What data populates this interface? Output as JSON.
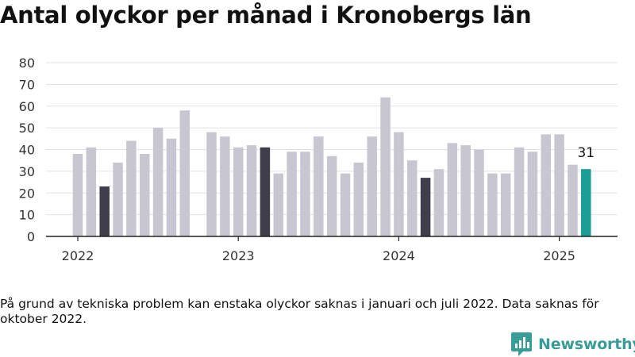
{
  "header": {
    "title": "Antal olyckor per månad i Kronobergs län"
  },
  "footer": {
    "note": "På grund av tekniska problem kan enstaka olyckor saknas i januari och juli 2022. Data saknas för oktober 2022.",
    "brand": "Newsworthy",
    "brand_icon": "bar-chart-logo-icon"
  },
  "colors": {
    "default": "#c8c7d1",
    "march": "#3f3e4a",
    "latest": "#1a9e96",
    "brand": "#3a9c96"
  },
  "chart_data": {
    "type": "bar",
    "title": "Antal olyckor per månad i Kronobergs län",
    "xlabel": "",
    "ylabel": "",
    "ylim": [
      0,
      80
    ],
    "yticks": [
      0,
      10,
      20,
      30,
      40,
      50,
      60,
      70,
      80
    ],
    "xticks": [
      "2022",
      "2023",
      "2024",
      "2025"
    ],
    "grid": true,
    "categories": [
      "2022-01",
      "2022-02",
      "2022-03",
      "2022-04",
      "2022-05",
      "2022-06",
      "2022-07",
      "2022-08",
      "2022-09",
      "2022-10",
      "2022-11",
      "2022-12",
      "2023-01",
      "2023-02",
      "2023-03",
      "2023-04",
      "2023-05",
      "2023-06",
      "2023-07",
      "2023-08",
      "2023-09",
      "2023-10",
      "2023-11",
      "2023-12",
      "2024-01",
      "2024-02",
      "2024-03",
      "2024-04",
      "2024-05",
      "2024-06",
      "2024-07",
      "2024-08",
      "2024-09",
      "2024-10",
      "2024-11",
      "2024-12",
      "2025-01",
      "2025-02",
      "2025-03"
    ],
    "values": [
      38,
      41,
      23,
      34,
      44,
      38,
      50,
      45,
      58,
      null,
      48,
      46,
      41,
      42,
      41,
      29,
      39,
      39,
      46,
      37,
      29,
      34,
      46,
      64,
      48,
      35,
      27,
      31,
      43,
      42,
      40,
      29,
      29,
      41,
      39,
      47,
      47,
      33,
      31
    ],
    "highlight_march": true,
    "latest_label": "31"
  }
}
